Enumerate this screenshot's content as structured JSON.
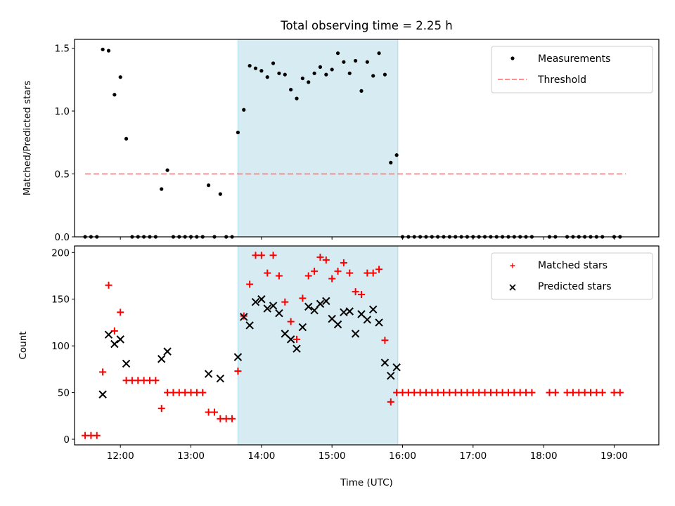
{
  "chart_data": [
    {
      "type": "scatter",
      "title": "Total observing time = 2.25 h",
      "xlabel": "",
      "ylabel": "Matched/Predicted stars",
      "xlim": [
        "11:21",
        "19:38"
      ],
      "ylim": [
        0,
        1.57
      ],
      "yticks": [
        0.0,
        0.5,
        1.0,
        1.5
      ],
      "ytick_labels": [
        "0.0",
        "0.5",
        "1.0",
        "1.5"
      ],
      "xticks": [
        "12:00",
        "13:00",
        "14:00",
        "15:00",
        "16:00",
        "17:00",
        "18:00",
        "19:00"
      ],
      "xtick_labels_visible": false,
      "grid": false,
      "legend": {
        "placement": "top-right",
        "entries": [
          "Measurements",
          "Threshold"
        ]
      },
      "shaded_interval": {
        "start": "13:40",
        "end": "15:56",
        "color": "#add8e6"
      },
      "series": [
        {
          "name": "Measurements",
          "marker": "dot",
          "color": "#000000",
          "x": [
            "11:30",
            "11:35",
            "11:40",
            "11:45",
            "11:50",
            "11:55",
            "12:00",
            "12:05",
            "12:10",
            "12:15",
            "12:20",
            "12:25",
            "12:30",
            "12:35",
            "12:40",
            "12:45",
            "12:50",
            "12:55",
            "13:00",
            "13:05",
            "13:10",
            "13:15",
            "13:20",
            "13:25",
            "13:30",
            "13:35",
            "13:40",
            "13:45",
            "13:50",
            "13:55",
            "14:00",
            "14:05",
            "14:10",
            "14:15",
            "14:20",
            "14:25",
            "14:30",
            "14:35",
            "14:40",
            "14:45",
            "14:50",
            "14:55",
            "15:00",
            "15:05",
            "15:10",
            "15:15",
            "15:20",
            "15:25",
            "15:30",
            "15:35",
            "15:40",
            "15:45",
            "15:50",
            "15:55",
            "16:00",
            "16:05",
            "16:10",
            "16:15",
            "16:20",
            "16:25",
            "16:30",
            "16:35",
            "16:40",
            "16:45",
            "16:50",
            "16:55",
            "17:00",
            "17:05",
            "17:10",
            "17:15",
            "17:20",
            "17:25",
            "17:30",
            "17:35",
            "17:40",
            "17:45",
            "17:50",
            "18:05",
            "18:10",
            "18:20",
            "18:25",
            "18:30",
            "18:35",
            "18:40",
            "18:45",
            "18:50",
            "19:00",
            "19:05"
          ],
          "y": [
            0,
            0,
            0,
            1.49,
            1.48,
            1.13,
            1.27,
            0.78,
            0,
            0,
            0,
            0,
            0,
            0.38,
            0.53,
            0,
            0,
            0,
            0,
            0,
            0,
            0.41,
            0,
            0.34,
            0,
            0,
            0.83,
            1.01,
            1.36,
            1.34,
            1.32,
            1.27,
            1.38,
            1.3,
            1.29,
            1.17,
            1.1,
            1.26,
            1.23,
            1.3,
            1.35,
            1.29,
            1.33,
            1.46,
            1.39,
            1.3,
            1.4,
            1.16,
            1.39,
            1.28,
            1.46,
            1.29,
            0.59,
            0.65,
            0,
            0,
            0,
            0,
            0,
            0,
            0,
            0,
            0,
            0,
            0,
            0,
            0,
            0,
            0,
            0,
            0,
            0,
            0,
            0,
            0,
            0,
            0,
            0,
            0,
            0,
            0,
            0,
            0,
            0,
            0,
            0,
            0,
            0
          ]
        },
        {
          "name": "Threshold",
          "style": "dashed-line",
          "color": "#ff7f7f",
          "x": [
            "11:30",
            "19:10"
          ],
          "y": [
            0.5,
            0.5
          ]
        }
      ]
    },
    {
      "type": "scatter",
      "title": "",
      "xlabel": "Time (UTC)",
      "ylabel": "Count",
      "xlim": [
        "11:21",
        "19:38"
      ],
      "ylim": [
        -6,
        207
      ],
      "yticks": [
        0,
        50,
        100,
        150,
        200
      ],
      "ytick_labels": [
        "0",
        "50",
        "100",
        "150",
        "200"
      ],
      "xticks": [
        "12:00",
        "13:00",
        "14:00",
        "15:00",
        "16:00",
        "17:00",
        "18:00",
        "19:00"
      ],
      "xtick_labels": [
        "12:00",
        "13:00",
        "14:00",
        "15:00",
        "16:00",
        "17:00",
        "18:00",
        "19:00"
      ],
      "grid": false,
      "legend": {
        "placement": "top-right",
        "entries": [
          "Matched stars",
          "Predicted stars"
        ]
      },
      "shaded_interval": {
        "start": "13:40",
        "end": "15:56",
        "color": "#add8e6"
      },
      "series": [
        {
          "name": "Matched stars",
          "marker": "plus",
          "color": "#ff0000",
          "x": [
            "11:30",
            "11:35",
            "11:40",
            "11:45",
            "11:50",
            "11:55",
            "12:00",
            "12:05",
            "12:10",
            "12:15",
            "12:20",
            "12:25",
            "12:30",
            "12:35",
            "12:40",
            "12:45",
            "12:50",
            "12:55",
            "13:00",
            "13:05",
            "13:10",
            "13:15",
            "13:20",
            "13:25",
            "13:30",
            "13:35",
            "13:40",
            "13:45",
            "13:50",
            "13:55",
            "14:00",
            "14:05",
            "14:10",
            "14:15",
            "14:20",
            "14:25",
            "14:30",
            "14:35",
            "14:40",
            "14:45",
            "14:50",
            "14:55",
            "15:00",
            "15:05",
            "15:10",
            "15:15",
            "15:20",
            "15:25",
            "15:30",
            "15:35",
            "15:40",
            "15:45",
            "15:50",
            "15:55",
            "16:00",
            "16:05",
            "16:10",
            "16:15",
            "16:20",
            "16:25",
            "16:30",
            "16:35",
            "16:40",
            "16:45",
            "16:50",
            "16:55",
            "17:00",
            "17:05",
            "17:10",
            "17:15",
            "17:20",
            "17:25",
            "17:30",
            "17:35",
            "17:40",
            "17:45",
            "17:50",
            "18:05",
            "18:10",
            "18:20",
            "18:25",
            "18:30",
            "18:35",
            "18:40",
            "18:45",
            "18:50",
            "19:00",
            "19:05"
          ],
          "y": [
            4,
            4,
            4,
            72,
            165,
            116,
            136,
            63,
            63,
            63,
            63,
            63,
            63,
            33,
            50,
            50,
            50,
            50,
            50,
            50,
            50,
            29,
            29,
            22,
            22,
            22,
            73,
            132,
            166,
            197,
            197,
            178,
            197,
            175,
            147,
            126,
            107,
            151,
            175,
            180,
            195,
            192,
            172,
            180,
            189,
            178,
            158,
            155,
            178,
            178,
            182,
            106,
            40,
            50,
            50,
            50,
            50,
            50,
            50,
            50,
            50,
            50,
            50,
            50,
            50,
            50,
            50,
            50,
            50,
            50,
            50,
            50,
            50,
            50,
            50,
            50,
            50,
            50,
            50,
            50,
            50,
            50,
            50,
            50,
            50,
            50,
            50,
            50
          ]
        },
        {
          "name": "Predicted stars",
          "marker": "x",
          "color": "#000000",
          "x": [
            "11:45",
            "11:50",
            "11:55",
            "12:00",
            "12:05",
            "12:35",
            "12:40",
            "13:15",
            "13:25",
            "13:40",
            "13:45",
            "13:50",
            "13:55",
            "14:00",
            "14:05",
            "14:10",
            "14:15",
            "14:20",
            "14:25",
            "14:30",
            "14:35",
            "14:40",
            "14:45",
            "14:50",
            "14:55",
            "15:00",
            "15:05",
            "15:10",
            "15:15",
            "15:20",
            "15:25",
            "15:30",
            "15:35",
            "15:40",
            "15:45",
            "15:50",
            "15:55"
          ],
          "y": [
            48,
            112,
            102,
            107,
            81,
            86,
            94,
            70,
            65,
            88,
            131,
            122,
            147,
            150,
            140,
            143,
            135,
            113,
            107,
            97,
            120,
            142,
            138,
            145,
            148,
            129,
            123,
            136,
            137,
            113,
            134,
            128,
            139,
            125,
            82,
            68,
            77
          ]
        }
      ]
    }
  ]
}
